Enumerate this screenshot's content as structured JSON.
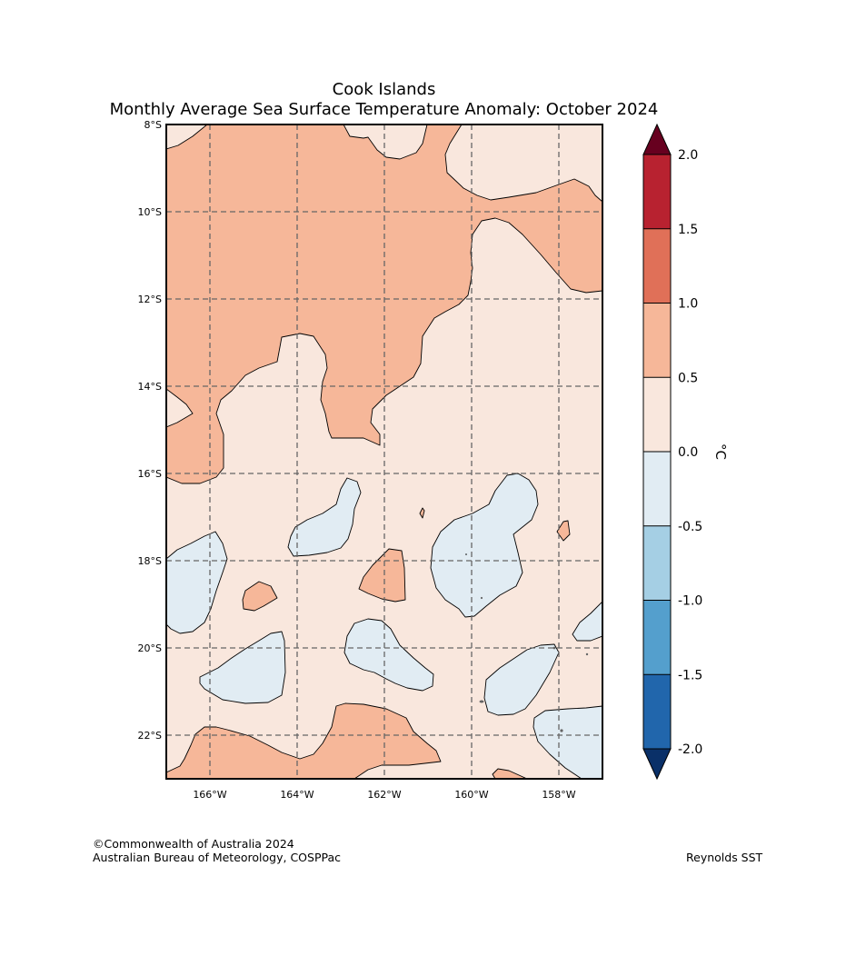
{
  "header": {
    "title": "Cook Islands",
    "subtitle": "Monthly Average Sea Surface Temperature Anomaly: October 2024"
  },
  "map": {
    "lat_labels": [
      "8°S",
      "10°S",
      "12°S",
      "14°S",
      "16°S",
      "18°S",
      "20°S",
      "22°S"
    ],
    "lon_labels": [
      "166°W",
      "164°W",
      "162°W",
      "160°W",
      "158°W"
    ],
    "lon_range": [
      -167,
      -157
    ],
    "lat_range": [
      -23,
      -8
    ],
    "grid": true
  },
  "colorbar": {
    "unit": "°C",
    "tick_labels": [
      "2.0",
      "1.5",
      "1.0",
      "0.5",
      "0.0",
      "-0.5",
      "-1.0",
      "-1.5",
      "-2.0"
    ],
    "bins": [
      {
        "range": "1.5 to 2.0",
        "color": "#b82230"
      },
      {
        "range": "1.0 to 1.5",
        "color": "#e07058"
      },
      {
        "range": "0.5 to 1.0",
        "color": "#f6b799"
      },
      {
        "range": "0.0 to 0.5",
        "color": "#f9e7dd"
      },
      {
        "range": "-0.5 to 0.0",
        "color": "#e1ecf3"
      },
      {
        "range": "-1.0 to -0.5",
        "color": "#a5cfe4"
      },
      {
        "range": "-1.5 to -1.0",
        "color": "#549fcd"
      },
      {
        "range": "-2.0 to -1.5",
        "color": "#2166ac"
      }
    ],
    "over_color": "#67001f",
    "under_color": "#0a3068"
  },
  "footer": {
    "credit_line1": "©Commonwealth of Australia 2024",
    "credit_line2": "Australian Bureau of Meteorology, COSPPac",
    "source": "Reynolds SST"
  }
}
